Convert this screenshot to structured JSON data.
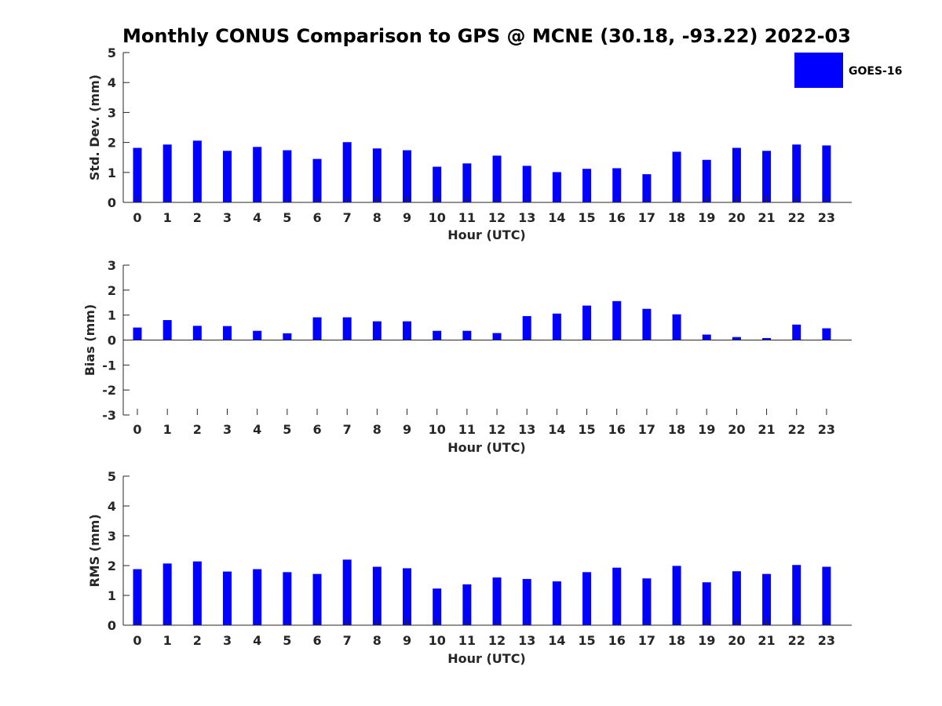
{
  "figure": {
    "title": "Monthly CONUS Comparison to GPS @ MCNE (30.18, -93.22) 2022-03",
    "bar_color": "#0000ff",
    "legend": {
      "label": "GOES-16",
      "placement": "top-right"
    }
  },
  "chart_data": [
    {
      "type": "bar",
      "series_name": "GOES-16",
      "xlabel": "Hour (UTC)",
      "ylabel": "Std. Dev. (mm)",
      "ylim": [
        0,
        5
      ],
      "yticks": [
        0,
        1,
        2,
        3,
        4,
        5
      ],
      "categories": [
        "0",
        "1",
        "2",
        "3",
        "4",
        "5",
        "6",
        "7",
        "8",
        "9",
        "10",
        "11",
        "12",
        "13",
        "14",
        "15",
        "16",
        "17",
        "18",
        "19",
        "20",
        "21",
        "22",
        "23"
      ],
      "values": [
        1.82,
        1.93,
        2.06,
        1.72,
        1.85,
        1.74,
        1.45,
        2.01,
        1.8,
        1.74,
        1.19,
        1.3,
        1.56,
        1.22,
        1.01,
        1.12,
        1.14,
        0.94,
        1.69,
        1.42,
        1.82,
        1.72,
        1.93,
        1.9
      ]
    },
    {
      "type": "bar",
      "series_name": "GOES-16",
      "xlabel": "Hour (UTC)",
      "ylabel": "Bias (mm)",
      "ylim": [
        -3,
        3
      ],
      "yticks": [
        -3,
        -2,
        -1,
        0,
        1,
        2,
        3
      ],
      "categories": [
        "0",
        "1",
        "2",
        "3",
        "4",
        "5",
        "6",
        "7",
        "8",
        "9",
        "10",
        "11",
        "12",
        "13",
        "14",
        "15",
        "16",
        "17",
        "18",
        "19",
        "20",
        "21",
        "22",
        "23"
      ],
      "values": [
        0.5,
        0.8,
        0.57,
        0.56,
        0.37,
        0.27,
        0.91,
        0.91,
        0.75,
        0.75,
        0.37,
        0.37,
        0.28,
        0.96,
        1.06,
        1.38,
        1.56,
        1.25,
        1.03,
        0.22,
        0.12,
        0.08,
        0.62,
        0.47
      ]
    },
    {
      "type": "bar",
      "series_name": "GOES-16",
      "xlabel": "Hour (UTC)",
      "ylabel": "RMS (mm)",
      "ylim": [
        0,
        5
      ],
      "yticks": [
        0,
        1,
        2,
        3,
        4,
        5
      ],
      "categories": [
        "0",
        "1",
        "2",
        "3",
        "4",
        "5",
        "6",
        "7",
        "8",
        "9",
        "10",
        "11",
        "12",
        "13",
        "14",
        "15",
        "16",
        "17",
        "18",
        "19",
        "20",
        "21",
        "22",
        "23"
      ],
      "values": [
        1.88,
        2.07,
        2.14,
        1.8,
        1.88,
        1.78,
        1.72,
        2.2,
        1.96,
        1.91,
        1.23,
        1.37,
        1.6,
        1.55,
        1.47,
        1.78,
        1.93,
        1.57,
        1.99,
        1.44,
        1.81,
        1.72,
        2.02,
        1.96
      ]
    }
  ]
}
